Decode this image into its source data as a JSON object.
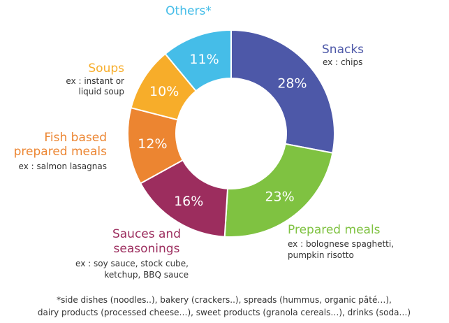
{
  "chart_data": {
    "type": "pie",
    "slices": [
      {
        "label": "Snacks",
        "example_lines": [
          "ex : chips"
        ],
        "value": 28,
        "value_label": "28%",
        "color": "#4d58a8"
      },
      {
        "label": "Prepared meals",
        "example_lines": [
          "ex : bolognese spaghetti,",
          "pumpkin risotto"
        ],
        "value": 23,
        "value_label": "23%",
        "color": "#7fc241"
      },
      {
        "label": "Sauces and seasonings",
        "title_lines": [
          "Sauces and",
          "seasonings"
        ],
        "example_lines": [
          "ex : soy sauce, stock cube,",
          "ketchup, BBQ sauce"
        ],
        "value": 16,
        "value_label": "16%",
        "color": "#9c2d5e"
      },
      {
        "label": "Fish based prepared meals",
        "title_lines": [
          "Fish based",
          "prepared meals"
        ],
        "example_lines": [
          "ex : salmon lasagnas"
        ],
        "value": 12,
        "value_label": "12%",
        "color": "#ec8531"
      },
      {
        "label": "Soups",
        "example_lines": [
          "ex : instant or",
          "liquid soup"
        ],
        "value": 10,
        "value_label": "10%",
        "color": "#f7ad2a"
      },
      {
        "label": "Others*",
        "example_lines": [],
        "value": 11,
        "value_label": "11%",
        "color": "#45bde8"
      }
    ]
  },
  "footnote": {
    "line1": "*side dishes (noodles..), bakery (crackers..), spreads (hummus, organic pâté…),",
    "line2": "dairy products (processed cheese…), sweet products (granola cereals…), drinks (soda…)"
  }
}
